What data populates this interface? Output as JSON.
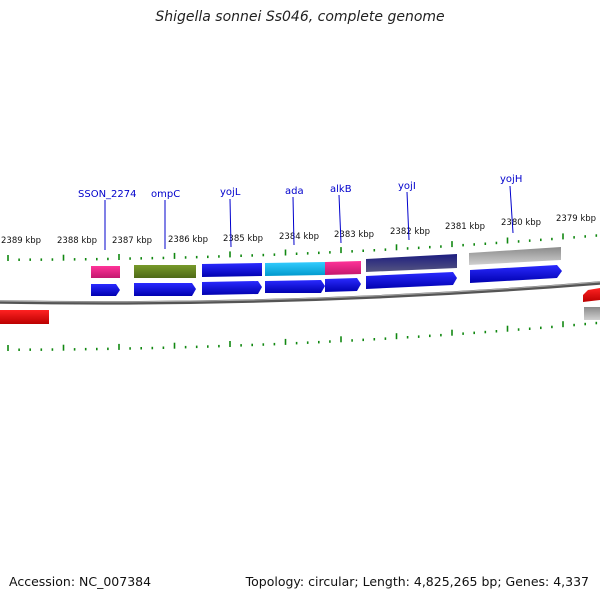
{
  "title": "Shigella sonnei Ss046, complete genome",
  "ruler_labels": [
    "2389 kbp",
    "2388 kbp",
    "2387 kbp",
    "2386 kbp",
    "2385 kbp",
    "2384 kbp",
    "2383 kbp",
    "2382 kbp",
    "2381 kbp",
    "2380 kbp",
    "2379 kbp"
  ],
  "gene_labels": [
    "SSON_2274",
    "ompC",
    "yojL",
    "ada",
    "alkB",
    "yojI",
    "yojH"
  ],
  "colors": {
    "label_blue": "#0000cc",
    "cds_blue": "#0000ee",
    "tick_green": "#118811",
    "backbone_gray": "#777777",
    "feature_red": "#ee0000",
    "pink": "#ee2288",
    "olive": "#668822",
    "cyan": "#11bbee",
    "navy": "#141470",
    "light_gray": "#b8b8b8"
  },
  "footer": {
    "accession": "Accession: NC_007384",
    "summary": "Topology: circular; Length: 4,825,265 bp; Genes: 4,337"
  }
}
